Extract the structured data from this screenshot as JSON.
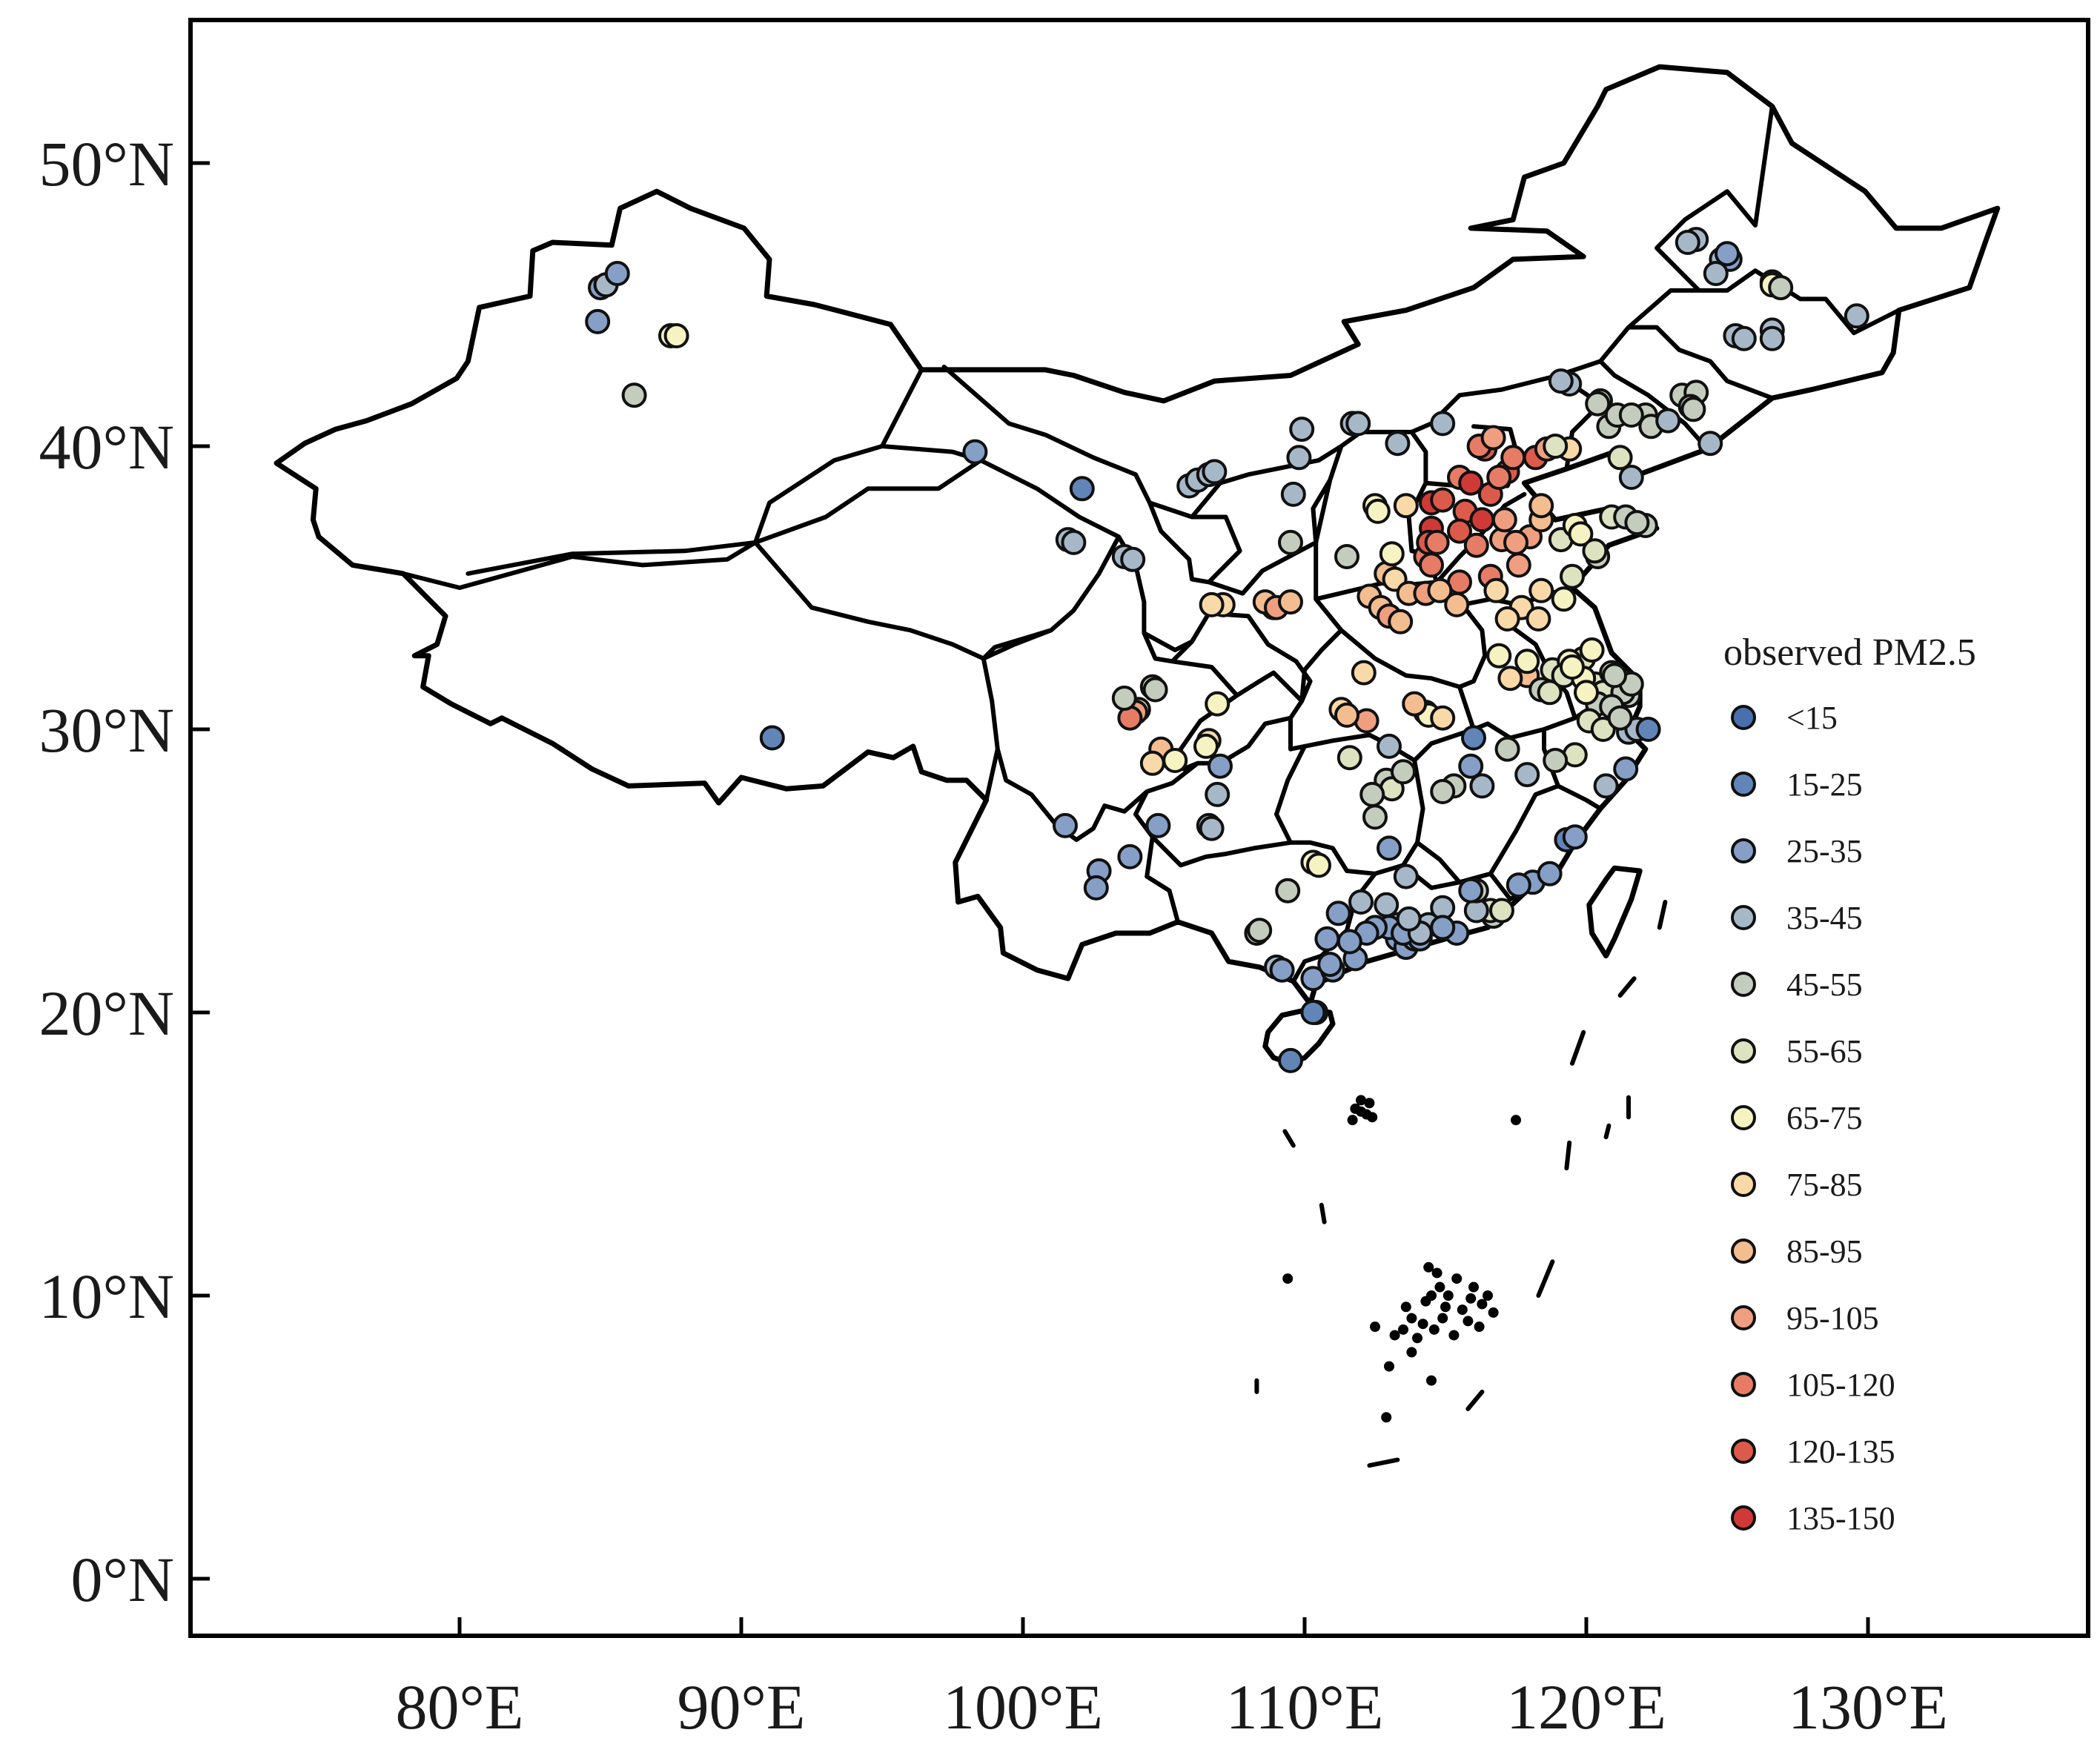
{
  "map": {
    "projection": "equirectangular",
    "lon_range": [
      70.0,
      137.0
    ],
    "lat_range": [
      -2.0,
      55.5
    ],
    "lon_ticks": [
      {
        "value": 80,
        "label": "80°E"
      },
      {
        "value": 90,
        "label": "90°E"
      },
      {
        "value": 100,
        "label": "100°E"
      },
      {
        "value": 110,
        "label": "110°E"
      },
      {
        "value": 120,
        "label": "120°E"
      },
      {
        "value": 130,
        "label": "130°E"
      }
    ],
    "lat_ticks": [
      {
        "value": 0,
        "label": "0°N"
      },
      {
        "value": 10,
        "label": "10°N"
      },
      {
        "value": 20,
        "label": "20°N"
      },
      {
        "value": 30,
        "label": "30°N"
      },
      {
        "value": 40,
        "label": "40°N"
      },
      {
        "value": 50,
        "label": "50°N"
      }
    ]
  },
  "legend": {
    "title": "observed PM2.5",
    "classes": [
      {
        "label": "<15",
        "color": "#4a6fad"
      },
      {
        "label": "15-25",
        "color": "#6285b8"
      },
      {
        "label": "25-35",
        "color": "#869fc6"
      },
      {
        "label": "35-45",
        "color": "#a6b8c8"
      },
      {
        "label": "45-55",
        "color": "#c4cdbd"
      },
      {
        "label": "55-65",
        "color": "#dde3c0"
      },
      {
        "label": "65-75",
        "color": "#f6f3c2"
      },
      {
        "label": "75-85",
        "color": "#f9d9a8"
      },
      {
        "label": "85-95",
        "color": "#f4bd8f"
      },
      {
        "label": "95-105",
        "color": "#ef9f7f"
      },
      {
        "label": "105-120",
        "color": "#e67c66"
      },
      {
        "label": "120-135",
        "color": "#dc5a4a"
      },
      {
        "label": "135-150",
        "color": "#cf3a36"
      }
    ]
  },
  "stations": [
    [
      84.9,
      44.4,
      2
    ],
    [
      85.0,
      45.6,
      2
    ],
    [
      85.2,
      45.7,
      3
    ],
    [
      85.6,
      46.1,
      2
    ],
    [
      87.5,
      43.9,
      6
    ],
    [
      87.7,
      43.9,
      6
    ],
    [
      86.2,
      41.8,
      4
    ],
    [
      91.1,
      29.7,
      1
    ],
    [
      98.3,
      39.8,
      2
    ],
    [
      102.1,
      38.5,
      1
    ],
    [
      101.6,
      36.7,
      3
    ],
    [
      101.8,
      36.6,
      3
    ],
    [
      103.6,
      36.1,
      3
    ],
    [
      103.9,
      36.0,
      3
    ],
    [
      105.9,
      38.6,
      3
    ],
    [
      106.2,
      38.8,
      3
    ],
    [
      106.6,
      39.0,
      3
    ],
    [
      106.8,
      39.1,
      3
    ],
    [
      109.9,
      40.6,
      3
    ],
    [
      109.8,
      39.6,
      3
    ],
    [
      109.6,
      38.3,
      3
    ],
    [
      111.7,
      40.8,
      3
    ],
    [
      111.9,
      40.8,
      3
    ],
    [
      113.3,
      40.1,
      3
    ],
    [
      114.9,
      40.8,
      3
    ],
    [
      109.5,
      36.6,
      4
    ],
    [
      108.9,
      34.3,
      8
    ],
    [
      108.6,
      34.5,
      8
    ],
    [
      109.0,
      34.3,
      9
    ],
    [
      109.5,
      34.5,
      8
    ],
    [
      107.1,
      34.4,
      7
    ],
    [
      106.7,
      34.4,
      7
    ],
    [
      111.5,
      36.1,
      4
    ],
    [
      112.5,
      37.9,
      6
    ],
    [
      112.6,
      37.7,
      6
    ],
    [
      113.6,
      37.9,
      7
    ],
    [
      112.9,
      35.5,
      8
    ],
    [
      113.2,
      35.3,
      7
    ],
    [
      113.1,
      36.2,
      6
    ],
    [
      112.3,
      34.7,
      8
    ],
    [
      112.7,
      34.3,
      8
    ],
    [
      113.0,
      34.0,
      9
    ],
    [
      113.4,
      33.8,
      8
    ],
    [
      113.7,
      34.8,
      8
    ],
    [
      114.3,
      34.8,
      9
    ],
    [
      114.3,
      36.1,
      10
    ],
    [
      114.5,
      37.1,
      12
    ],
    [
      114.4,
      36.6,
      11
    ],
    [
      114.7,
      36.6,
      10
    ],
    [
      114.5,
      38.0,
      12
    ],
    [
      114.9,
      38.1,
      11
    ],
    [
      115.5,
      38.9,
      10
    ],
    [
      115.9,
      38.7,
      12
    ],
    [
      116.4,
      39.9,
      11
    ],
    [
      116.2,
      40.0,
      10
    ],
    [
      116.7,
      40.3,
      9
    ],
    [
      117.2,
      39.1,
      11
    ],
    [
      117.4,
      39.6,
      10
    ],
    [
      118.2,
      39.6,
      11
    ],
    [
      118.6,
      39.9,
      9
    ],
    [
      115.7,
      37.7,
      11
    ],
    [
      116.3,
      37.4,
      12
    ],
    [
      116.6,
      38.3,
      11
    ],
    [
      116.9,
      38.9,
      10
    ],
    [
      115.5,
      37.0,
      11
    ],
    [
      116.1,
      36.5,
      10
    ],
    [
      117.0,
      36.7,
      9
    ],
    [
      117.1,
      37.4,
      9
    ],
    [
      118.0,
      36.8,
      9
    ],
    [
      118.4,
      37.4,
      8
    ],
    [
      117.6,
      35.8,
      9
    ],
    [
      116.6,
      35.4,
      10
    ],
    [
      115.5,
      35.2,
      10
    ],
    [
      114.5,
      35.8,
      10
    ],
    [
      114.8,
      34.9,
      8
    ],
    [
      115.4,
      34.4,
      8
    ],
    [
      116.8,
      34.9,
      7
    ],
    [
      117.7,
      34.3,
      7
    ],
    [
      118.4,
      34.9,
      7
    ],
    [
      117.2,
      33.9,
      7
    ],
    [
      118.3,
      33.9,
      7
    ],
    [
      119.2,
      34.6,
      6
    ],
    [
      119.5,
      35.4,
      5
    ],
    [
      120.4,
      36.1,
      4
    ],
    [
      120.9,
      37.5,
      5
    ],
    [
      121.4,
      37.5,
      4
    ],
    [
      122.1,
      37.2,
      4
    ],
    [
      121.8,
      37.3,
      4
    ],
    [
      119.1,
      36.7,
      5
    ],
    [
      119.6,
      37.2,
      6
    ],
    [
      119.8,
      36.9,
      6
    ],
    [
      120.3,
      36.3,
      5
    ],
    [
      118.4,
      37.9,
      8
    ],
    [
      117.5,
      36.6,
      9
    ],
    [
      119.4,
      39.9,
      7
    ],
    [
      118.9,
      40.0,
      5
    ],
    [
      120.8,
      40.7,
      4
    ],
    [
      121.1,
      41.1,
      4
    ],
    [
      122.1,
      41.1,
      4
    ],
    [
      121.6,
      41.1,
      4
    ],
    [
      122.3,
      40.7,
      4
    ],
    [
      123.4,
      41.8,
      4
    ],
    [
      123.9,
      41.9,
      4
    ],
    [
      123.7,
      41.4,
      4
    ],
    [
      121.6,
      38.9,
      3
    ],
    [
      122.9,
      40.9,
      3
    ],
    [
      124.4,
      40.1,
      3
    ],
    [
      120.5,
      41.6,
      4
    ],
    [
      119.4,
      42.2,
      3
    ],
    [
      119.1,
      42.3,
      3
    ],
    [
      120.4,
      41.5,
      4
    ],
    [
      123.8,
      41.3,
      4
    ],
    [
      121.2,
      39.6,
      5
    ],
    [
      125.3,
      43.9,
      3
    ],
    [
      125.6,
      43.8,
      3
    ],
    [
      126.6,
      44.1,
      3
    ],
    [
      126.6,
      43.8,
      3
    ],
    [
      124.8,
      46.6,
      3
    ],
    [
      125.1,
      46.6,
      2
    ],
    [
      124.6,
      46.1,
      3
    ],
    [
      126.6,
      45.8,
      6
    ],
    [
      126.6,
      45.7,
      6
    ],
    [
      126.9,
      45.6,
      4
    ],
    [
      129.6,
      44.6,
      3
    ],
    [
      123.9,
      47.3,
      3
    ],
    [
      123.6,
      47.2,
      3
    ],
    [
      125.0,
      46.8,
      2
    ],
    [
      117.9,
      31.9,
      8
    ],
    [
      117.3,
      31.8,
      7
    ],
    [
      116.9,
      32.6,
      6
    ],
    [
      117.9,
      32.4,
      6
    ],
    [
      118.8,
      32.1,
      5
    ],
    [
      118.4,
      31.4,
      4
    ],
    [
      118.7,
      31.3,
      5
    ],
    [
      119.9,
      32.5,
      5
    ],
    [
      119.4,
      32.4,
      6
    ],
    [
      120.3,
      31.6,
      5
    ],
    [
      120.6,
      31.3,
      5
    ],
    [
      121.5,
      31.2,
      4
    ],
    [
      121.3,
      31.3,
      4
    ],
    [
      120.9,
      32.0,
      5
    ],
    [
      121.6,
      31.6,
      4
    ],
    [
      121.0,
      31.9,
      4
    ],
    [
      120.4,
      30.9,
      4
    ],
    [
      120.1,
      30.3,
      5
    ],
    [
      120.6,
      30.0,
      5
    ],
    [
      121.5,
      29.9,
      3
    ],
    [
      121.8,
      30.0,
      3
    ],
    [
      121.4,
      28.6,
      2
    ],
    [
      120.7,
      28.0,
      3
    ],
    [
      119.6,
      29.1,
      5
    ],
    [
      118.9,
      28.9,
      4
    ],
    [
      119.2,
      31.9,
      5
    ],
    [
      119.9,
      31.8,
      6
    ],
    [
      119.5,
      32.2,
      6
    ],
    [
      120.9,
      30.8,
      4
    ],
    [
      121.2,
      30.4,
      4
    ],
    [
      120.2,
      32.8,
      6
    ],
    [
      120.0,
      31.3,
      6
    ],
    [
      122.2,
      30.0,
      1
    ],
    [
      116.0,
      29.7,
      1
    ],
    [
      115.9,
      28.7,
      2
    ],
    [
      117.2,
      29.3,
      4
    ],
    [
      117.9,
      28.4,
      3
    ],
    [
      116.3,
      28.0,
      3
    ],
    [
      115.3,
      28.0,
      4
    ],
    [
      114.9,
      27.8,
      4
    ],
    [
      114.3,
      30.6,
      7
    ],
    [
      114.4,
      30.5,
      6
    ],
    [
      114.9,
      30.4,
      7
    ],
    [
      112.2,
      30.3,
      9
    ],
    [
      111.3,
      30.7,
      7
    ],
    [
      111.5,
      30.5,
      8
    ],
    [
      113.9,
      30.9,
      8
    ],
    [
      112.1,
      32.0,
      7
    ],
    [
      113.0,
      29.4,
      3
    ],
    [
      112.9,
      28.2,
      4
    ],
    [
      113.1,
      27.9,
      5
    ],
    [
      113.5,
      28.5,
      4
    ],
    [
      112.4,
      27.7,
      4
    ],
    [
      111.6,
      29.0,
      5
    ],
    [
      112.5,
      26.9,
      4
    ],
    [
      113.0,
      25.8,
      2
    ],
    [
      104.1,
      30.7,
      7
    ],
    [
      104.0,
      30.6,
      9
    ],
    [
      103.8,
      30.4,
      10
    ],
    [
      104.6,
      31.5,
      5
    ],
    [
      104.7,
      31.4,
      4
    ],
    [
      103.6,
      31.1,
      4
    ],
    [
      104.9,
      29.3,
      8
    ],
    [
      105.4,
      28.9,
      6
    ],
    [
      104.6,
      28.8,
      7
    ],
    [
      106.6,
      29.6,
      7
    ],
    [
      106.5,
      29.4,
      6
    ],
    [
      106.9,
      30.9,
      6
    ],
    [
      106.6,
      26.6,
      3
    ],
    [
      106.7,
      26.5,
      3
    ],
    [
      106.9,
      27.7,
      3
    ],
    [
      107.0,
      28.7,
      2
    ],
    [
      104.8,
      26.6,
      2
    ],
    [
      103.8,
      25.5,
      2
    ],
    [
      102.7,
      25.0,
      2
    ],
    [
      102.6,
      24.4,
      2
    ],
    [
      101.5,
      26.6,
      2
    ],
    [
      108.3,
      22.8,
      4
    ],
    [
      108.4,
      22.9,
      4
    ],
    [
      109.4,
      24.3,
      4
    ],
    [
      110.3,
      25.3,
      6
    ],
    [
      110.5,
      25.2,
      6
    ],
    [
      109.0,
      21.6,
      3
    ],
    [
      109.2,
      21.5,
      2
    ],
    [
      110.3,
      21.2,
      2
    ],
    [
      110.4,
      20.0,
      1
    ],
    [
      110.3,
      20.0,
      1
    ],
    [
      109.5,
      18.3,
      1
    ],
    [
      113.3,
      23.1,
      3
    ],
    [
      113.3,
      22.6,
      2
    ],
    [
      113.6,
      22.3,
      2
    ],
    [
      113.9,
      22.6,
      2
    ],
    [
      114.1,
      22.6,
      2
    ],
    [
      114.4,
      23.1,
      3
    ],
    [
      114.9,
      23.7,
      3
    ],
    [
      116.7,
      23.4,
      4
    ],
    [
      116.6,
      23.6,
      5
    ],
    [
      117.0,
      23.6,
      5
    ],
    [
      113.0,
      23.0,
      2
    ],
    [
      112.5,
      23.0,
      2
    ],
    [
      111.0,
      21.5,
      2
    ],
    [
      111.8,
      21.9,
      2
    ],
    [
      110.9,
      21.7,
      2
    ],
    [
      112.2,
      22.8,
      2
    ],
    [
      113.5,
      22.8,
      2
    ],
    [
      115.4,
      22.8,
      2
    ],
    [
      116.1,
      23.6,
      3
    ],
    [
      113.6,
      24.8,
      3
    ],
    [
      116.1,
      24.3,
      4
    ],
    [
      118.1,
      24.6,
      2
    ],
    [
      118.7,
      24.9,
      2
    ],
    [
      119.3,
      26.1,
      1
    ],
    [
      119.6,
      26.2,
      2
    ],
    [
      117.6,
      24.5,
      2
    ],
    [
      114.1,
      22.8,
      3
    ],
    [
      114.9,
      23.0,
      2
    ],
    [
      112.9,
      23.8,
      3
    ],
    [
      113.7,
      23.3,
      3
    ],
    [
      115.9,
      24.3,
      2
    ],
    [
      111.2,
      23.5,
      2
    ],
    [
      110.8,
      22.6,
      2
    ],
    [
      112.0,
      23.9,
      3
    ],
    [
      111.6,
      22.5,
      2
    ]
  ]
}
